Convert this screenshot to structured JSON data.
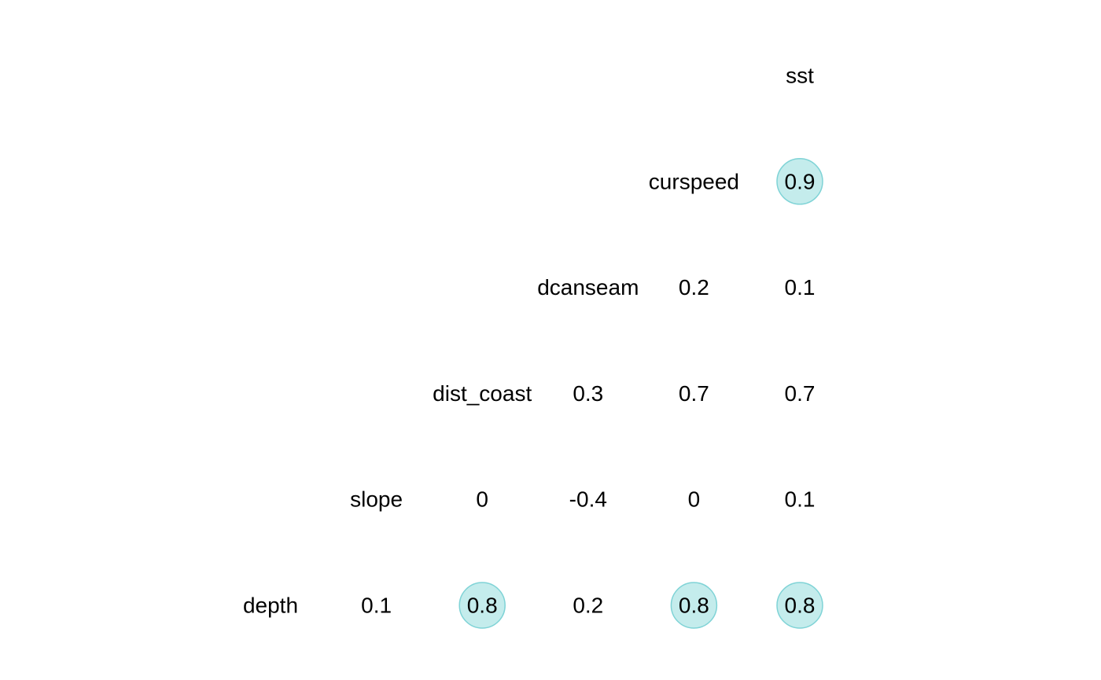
{
  "chart_data": {
    "type": "heatmap",
    "variables": [
      "depth",
      "slope",
      "dist_coast",
      "dcanseam",
      "curspeed",
      "sst"
    ],
    "cells": [
      {
        "row": "slope",
        "col": "depth",
        "label": "0.1",
        "value": 0.1,
        "highlight": false
      },
      {
        "row": "dist_coast",
        "col": "depth",
        "label": "0.8",
        "value": 0.8,
        "highlight": true
      },
      {
        "row": "dist_coast",
        "col": "slope",
        "label": "0",
        "value": 0,
        "highlight": false
      },
      {
        "row": "dcanseam",
        "col": "depth",
        "label": "0.2",
        "value": 0.2,
        "highlight": false
      },
      {
        "row": "dcanseam",
        "col": "slope",
        "label": "-0.4",
        "value": -0.4,
        "highlight": false
      },
      {
        "row": "dcanseam",
        "col": "dist_coast",
        "label": "0.3",
        "value": 0.3,
        "highlight": false
      },
      {
        "row": "curspeed",
        "col": "depth",
        "label": "0.8",
        "value": 0.8,
        "highlight": true
      },
      {
        "row": "curspeed",
        "col": "slope",
        "label": "0",
        "value": 0,
        "highlight": false
      },
      {
        "row": "curspeed",
        "col": "dist_coast",
        "label": "0.7",
        "value": 0.7,
        "highlight": false
      },
      {
        "row": "curspeed",
        "col": "dcanseam",
        "label": "0.2",
        "value": 0.2,
        "highlight": false
      },
      {
        "row": "sst",
        "col": "depth",
        "label": "0.8",
        "value": 0.8,
        "highlight": true
      },
      {
        "row": "sst",
        "col": "slope",
        "label": "0.1",
        "value": 0.1,
        "highlight": false
      },
      {
        "row": "sst",
        "col": "dist_coast",
        "label": "0.7",
        "value": 0.7,
        "highlight": false
      },
      {
        "row": "sst",
        "col": "dcanseam",
        "label": "0.1",
        "value": 0.1,
        "highlight": false
      },
      {
        "row": "sst",
        "col": "curspeed",
        "label": "0.9",
        "value": 0.9,
        "highlight": true
      }
    ],
    "highlight_color": "#9ddfe0",
    "highlight_stroke": "#7fd3d6",
    "text_color": "#000000",
    "grid": false,
    "legend": "none"
  }
}
